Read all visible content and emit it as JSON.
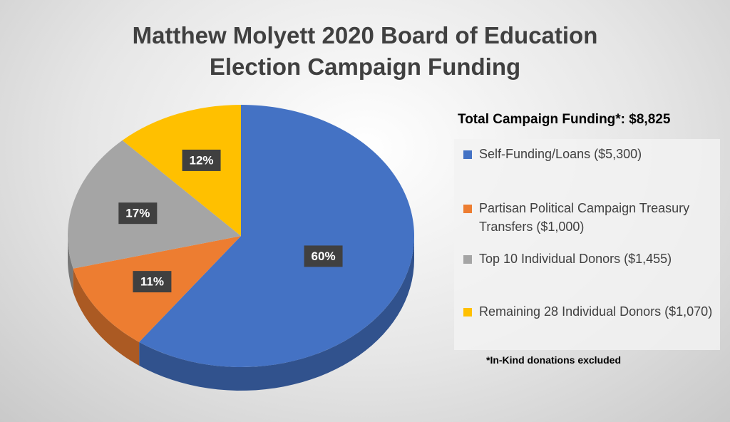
{
  "chart_data": {
    "type": "pie",
    "title": [
      "Matthew Molyett 2020 Board of Education",
      "Election Campaign Funding"
    ],
    "subtitle": "Total Campaign Funding*: $8,825",
    "note": "*In-Kind donations excluded",
    "categories": [
      "Self-Funding/Loans ($5,300)",
      "Partisan Political Campaign Treasury Transfers ($1,000)",
      "Top 10 Individual Donors ($1,455)",
      "Remaining 28 Individual Donors ($1,070)"
    ],
    "values": [
      60,
      11,
      17,
      12
    ],
    "value_labels": [
      "60%",
      "11%",
      "17%",
      "12%"
    ],
    "colors": [
      "#4472c4",
      "#ed7d31",
      "#a5a5a5",
      "#ffc000"
    ],
    "legend": "right"
  }
}
